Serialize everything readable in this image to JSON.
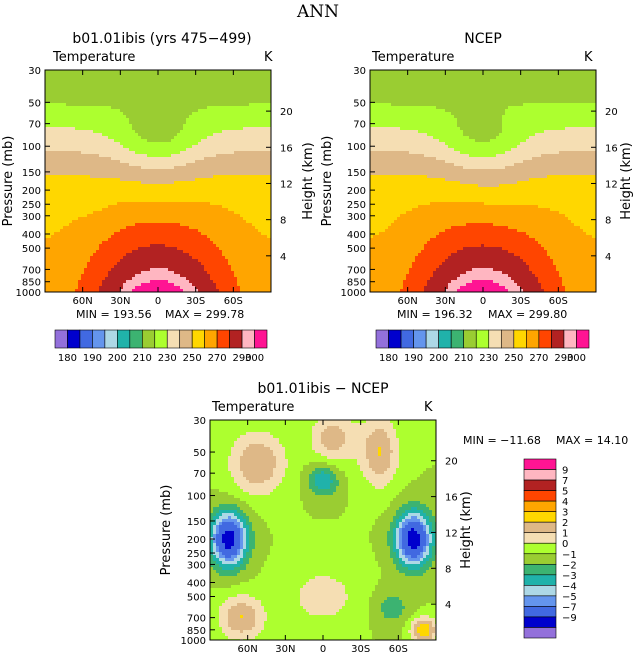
{
  "figure_title": "ANN",
  "colors": {
    "abs": [
      "#9370db",
      "#0000cd",
      "#4169e1",
      "#6495ed",
      "#add8e6",
      "#20b2aa",
      "#3cb371",
      "#9acd32",
      "#adff2f",
      "#f5deb3",
      "#deb887",
      "#ffd700",
      "#ffa500",
      "#ff4500",
      "#b22222",
      "#ffb6c1",
      "#ff1493"
    ],
    "diff": [
      "#9370db",
      "#0000cd",
      "#4169e1",
      "#6495ed",
      "#add8e6",
      "#20b2aa",
      "#3cb371",
      "#9acd32",
      "#adff2f",
      "#f5deb3",
      "#deb887",
      "#ffd700",
      "#ffa500",
      "#ff4500",
      "#b22222",
      "#ffb6c1",
      "#ff1493"
    ]
  },
  "chart_data": [
    {
      "type": "heatmap",
      "title": "b01.01ibis (yrs 475−499)",
      "variable": "Temperature",
      "units": "K",
      "ylabel": "Pressure (mb)",
      "y2label": "Height (km)",
      "x_ticks": [
        "60N",
        "30N",
        "0",
        "30S",
        "60S"
      ],
      "x_values": [
        60,
        30,
        0,
        -30,
        -60
      ],
      "xlim": [
        90,
        -90
      ],
      "y_ticks": [
        30,
        50,
        70,
        100,
        150,
        200,
        250,
        300,
        400,
        500,
        700,
        850,
        1000
      ],
      "ylim": [
        1000,
        30
      ],
      "y_scale": "log",
      "y2_ticks": [
        4,
        8,
        12,
        16,
        20
      ],
      "min_label": "MIN = 193.56",
      "max_label": "MAX = 299.78",
      "min": 193.56,
      "max": 299.78,
      "colorbar_labels": [
        "180",
        "190",
        "200",
        "210",
        "230",
        "250",
        "270",
        "290",
        "300"
      ],
      "colorbar_orientation": "horizontal"
    },
    {
      "type": "heatmap",
      "title": "NCEP",
      "variable": "Temperature",
      "units": "K",
      "ylabel": "Pressure (mb)",
      "y2label": "Height (km)",
      "x_ticks": [
        "60N",
        "30N",
        "0",
        "30S",
        "60S"
      ],
      "x_values": [
        60,
        30,
        0,
        -30,
        -60
      ],
      "xlim": [
        90,
        -90
      ],
      "y_ticks": [
        30,
        50,
        70,
        100,
        150,
        200,
        250,
        300,
        400,
        500,
        700,
        850,
        1000
      ],
      "ylim": [
        1000,
        30
      ],
      "y_scale": "log",
      "y2_ticks": [
        4,
        8,
        12,
        16,
        20
      ],
      "min_label": "MIN = 196.32",
      "max_label": "MAX = 299.80",
      "min": 196.32,
      "max": 299.8,
      "colorbar_labels": [
        "180",
        "190",
        "200",
        "210",
        "230",
        "250",
        "270",
        "290",
        "300"
      ],
      "colorbar_orientation": "horizontal"
    },
    {
      "type": "heatmap",
      "title": "b01.01ibis − NCEP",
      "variable": "Temperature",
      "units": "K",
      "ylabel": "Pressure (mb)",
      "y2label": "Height (km)",
      "x_ticks": [
        "60N",
        "30N",
        "0",
        "30S",
        "60S"
      ],
      "x_values": [
        60,
        30,
        0,
        -30,
        -60
      ],
      "xlim": [
        90,
        -90
      ],
      "y_ticks": [
        30,
        50,
        70,
        100,
        150,
        200,
        250,
        300,
        400,
        500,
        700,
        850,
        1000
      ],
      "ylim": [
        1000,
        30
      ],
      "y_scale": "log",
      "y2_ticks": [
        4,
        8,
        12,
        16,
        20
      ],
      "min_label": "MIN = −11.68",
      "max_label": "MAX =  14.10",
      "min": -11.68,
      "max": 14.1,
      "colorbar_labels": [
        "9",
        "7",
        "5",
        "4",
        "3",
        "2",
        "1",
        "0",
        "−1",
        "−2",
        "−3",
        "−4",
        "−5",
        "−7",
        "−9"
      ],
      "colorbar_orientation": "vertical"
    }
  ]
}
